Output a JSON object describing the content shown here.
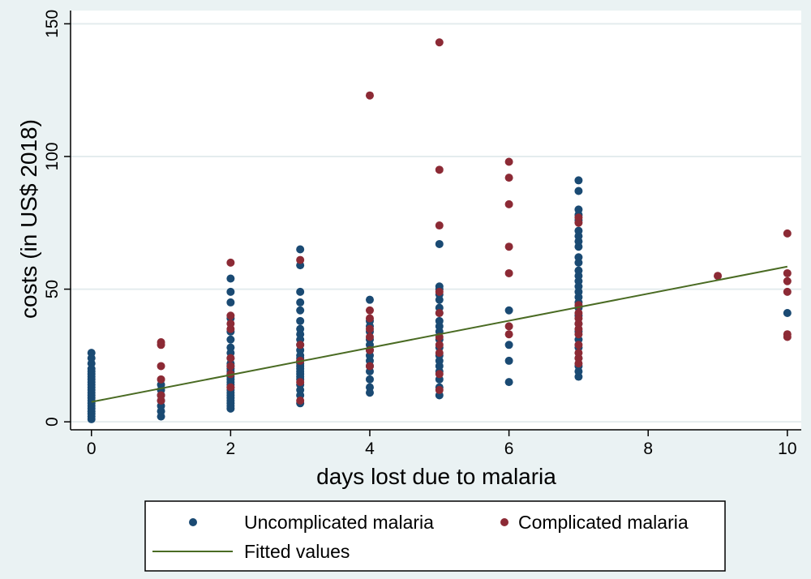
{
  "chart_data": {
    "type": "scatter",
    "title": "",
    "xlabel": "days lost due to malaria",
    "ylabel": "costs (in US$ 2018)",
    "xlim": [
      -0.3,
      10.2
    ],
    "ylim": [
      -3,
      155
    ],
    "xticks": [
      0,
      2,
      4,
      6,
      8,
      10
    ],
    "yticks": [
      0,
      50,
      100,
      150
    ],
    "grid": true,
    "legend_position": "bottom",
    "colors": {
      "background": "#eaf2f3",
      "plot_area": "#ffffff",
      "gridline": "#e4ecee",
      "uncomplicated": "#1a4a73",
      "complicated": "#8c2a35",
      "fitted": "#4a6b23"
    },
    "series": [
      {
        "name": "Uncomplicated malaria",
        "kind": "points",
        "points": [
          [
            0,
            1
          ],
          [
            0,
            2
          ],
          [
            0,
            3
          ],
          [
            0,
            4
          ],
          [
            0,
            5
          ],
          [
            0,
            6
          ],
          [
            0,
            7
          ],
          [
            0,
            8
          ],
          [
            0,
            9
          ],
          [
            0,
            10
          ],
          [
            0,
            11
          ],
          [
            0,
            12
          ],
          [
            0,
            13
          ],
          [
            0,
            14
          ],
          [
            0,
            15
          ],
          [
            0,
            16
          ],
          [
            0,
            17
          ],
          [
            0,
            18
          ],
          [
            0,
            19
          ],
          [
            0,
            20
          ],
          [
            0,
            22
          ],
          [
            0,
            24
          ],
          [
            0,
            26
          ],
          [
            1,
            2
          ],
          [
            1,
            4
          ],
          [
            1,
            6
          ],
          [
            1,
            8
          ],
          [
            1,
            10
          ],
          [
            1,
            12
          ],
          [
            1,
            14
          ],
          [
            2,
            5
          ],
          [
            2,
            6
          ],
          [
            2,
            7
          ],
          [
            2,
            8
          ],
          [
            2,
            9
          ],
          [
            2,
            10
          ],
          [
            2,
            11
          ],
          [
            2,
            12
          ],
          [
            2,
            13
          ],
          [
            2,
            14
          ],
          [
            2,
            15
          ],
          [
            2,
            16
          ],
          [
            2,
            17
          ],
          [
            2,
            18
          ],
          [
            2,
            19
          ],
          [
            2,
            20
          ],
          [
            2,
            21
          ],
          [
            2,
            22
          ],
          [
            2,
            24
          ],
          [
            2,
            26
          ],
          [
            2,
            28
          ],
          [
            2,
            31
          ],
          [
            2,
            34
          ],
          [
            2,
            39
          ],
          [
            2,
            45
          ],
          [
            2,
            49
          ],
          [
            2,
            54
          ],
          [
            3,
            7
          ],
          [
            3,
            10
          ],
          [
            3,
            12
          ],
          [
            3,
            14
          ],
          [
            3,
            16
          ],
          [
            3,
            17
          ],
          [
            3,
            18
          ],
          [
            3,
            19
          ],
          [
            3,
            20
          ],
          [
            3,
            21
          ],
          [
            3,
            22
          ],
          [
            3,
            23
          ],
          [
            3,
            24
          ],
          [
            3,
            25
          ],
          [
            3,
            27
          ],
          [
            3,
            29
          ],
          [
            3,
            31
          ],
          [
            3,
            33
          ],
          [
            3,
            35
          ],
          [
            3,
            38
          ],
          [
            3,
            42
          ],
          [
            3,
            45
          ],
          [
            3,
            49
          ],
          [
            3,
            59
          ],
          [
            3,
            65
          ],
          [
            4,
            11
          ],
          [
            4,
            13
          ],
          [
            4,
            16
          ],
          [
            4,
            19
          ],
          [
            4,
            21
          ],
          [
            4,
            23
          ],
          [
            4,
            25
          ],
          [
            4,
            27
          ],
          [
            4,
            29
          ],
          [
            4,
            31
          ],
          [
            4,
            34
          ],
          [
            4,
            36
          ],
          [
            4,
            38
          ],
          [
            4,
            46
          ],
          [
            5,
            10
          ],
          [
            5,
            13
          ],
          [
            5,
            16
          ],
          [
            5,
            19
          ],
          [
            5,
            21
          ],
          [
            5,
            23
          ],
          [
            5,
            25
          ],
          [
            5,
            28
          ],
          [
            5,
            31
          ],
          [
            5,
            34
          ],
          [
            5,
            36
          ],
          [
            5,
            38
          ],
          [
            5,
            41
          ],
          [
            5,
            43
          ],
          [
            5,
            46
          ],
          [
            5,
            48
          ],
          [
            5,
            50
          ],
          [
            5,
            51
          ],
          [
            5,
            67
          ],
          [
            6,
            15
          ],
          [
            6,
            23
          ],
          [
            6,
            29
          ],
          [
            6,
            42
          ],
          [
            7,
            17
          ],
          [
            7,
            19
          ],
          [
            7,
            21
          ],
          [
            7,
            24
          ],
          [
            7,
            28
          ],
          [
            7,
            31
          ],
          [
            7,
            34
          ],
          [
            7,
            37
          ],
          [
            7,
            40
          ],
          [
            7,
            43
          ],
          [
            7,
            45
          ],
          [
            7,
            47
          ],
          [
            7,
            49
          ],
          [
            7,
            51
          ],
          [
            7,
            53
          ],
          [
            7,
            55
          ],
          [
            7,
            57
          ],
          [
            7,
            60
          ],
          [
            7,
            62
          ],
          [
            7,
            66
          ],
          [
            7,
            68
          ],
          [
            7,
            70
          ],
          [
            7,
            72
          ],
          [
            7,
            76
          ],
          [
            7,
            78
          ],
          [
            7,
            80
          ],
          [
            7,
            87
          ],
          [
            7,
            91
          ],
          [
            10,
            41
          ]
        ]
      },
      {
        "name": "Complicated malaria",
        "kind": "points",
        "points": [
          [
            1,
            8
          ],
          [
            1,
            10
          ],
          [
            1,
            16
          ],
          [
            1,
            21
          ],
          [
            1,
            29
          ],
          [
            1,
            30
          ],
          [
            2,
            13
          ],
          [
            2,
            18
          ],
          [
            2,
            21
          ],
          [
            2,
            24
          ],
          [
            2,
            35
          ],
          [
            2,
            37
          ],
          [
            2,
            40
          ],
          [
            2,
            60
          ],
          [
            3,
            8
          ],
          [
            3,
            15
          ],
          [
            3,
            23
          ],
          [
            3,
            29
          ],
          [
            3,
            61
          ],
          [
            4,
            21
          ],
          [
            4,
            27
          ],
          [
            4,
            32
          ],
          [
            4,
            35
          ],
          [
            4,
            39
          ],
          [
            4,
            42
          ],
          [
            4,
            123
          ],
          [
            5,
            12
          ],
          [
            5,
            18
          ],
          [
            5,
            26
          ],
          [
            5,
            29
          ],
          [
            5,
            32
          ],
          [
            5,
            41
          ],
          [
            5,
            49
          ],
          [
            5,
            74
          ],
          [
            5,
            95
          ],
          [
            5,
            143
          ],
          [
            6,
            33
          ],
          [
            6,
            36
          ],
          [
            6,
            56
          ],
          [
            6,
            66
          ],
          [
            6,
            82
          ],
          [
            6,
            92
          ],
          [
            6,
            98
          ],
          [
            7,
            22
          ],
          [
            7,
            24
          ],
          [
            7,
            26
          ],
          [
            7,
            29
          ],
          [
            7,
            33
          ],
          [
            7,
            35
          ],
          [
            7,
            37
          ],
          [
            7,
            39
          ],
          [
            7,
            41
          ],
          [
            7,
            44
          ],
          [
            7,
            75
          ],
          [
            7,
            77
          ],
          [
            9,
            55
          ],
          [
            10,
            32
          ],
          [
            10,
            33
          ],
          [
            10,
            49
          ],
          [
            10,
            53
          ],
          [
            10,
            56
          ],
          [
            10,
            71
          ]
        ]
      },
      {
        "name": "Fitted values",
        "kind": "line",
        "points": [
          [
            0,
            7.5
          ],
          [
            10,
            58.5
          ]
        ]
      }
    ]
  }
}
